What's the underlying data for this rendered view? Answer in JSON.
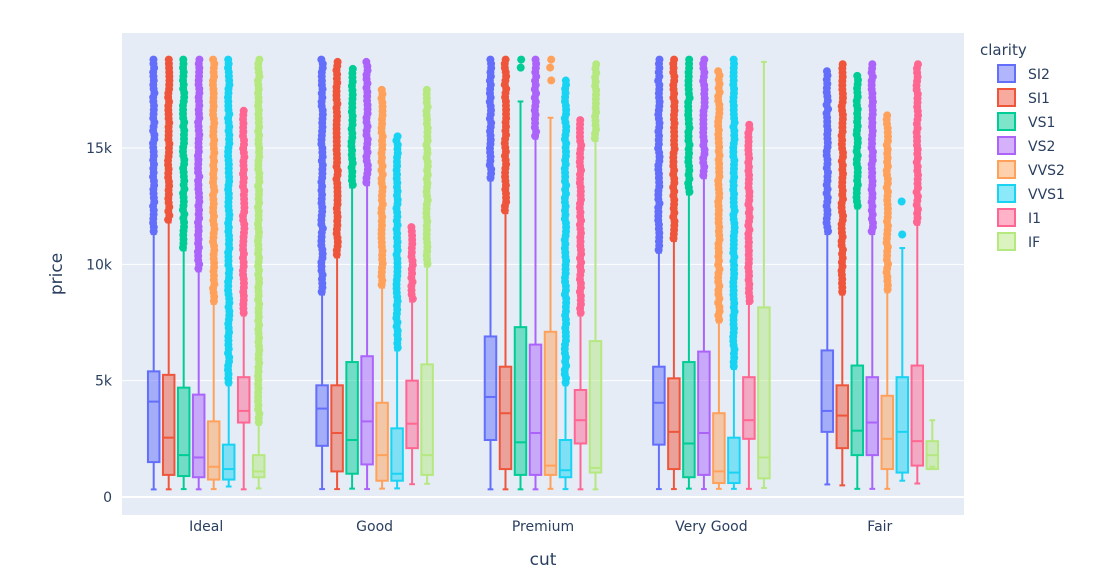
{
  "chart_data": {
    "type": "box",
    "title": "",
    "xlabel": "cut",
    "ylabel": "price",
    "ylim": [
      -600,
      19800
    ],
    "yticks": [
      0,
      5000,
      10000,
      15000
    ],
    "ytick_labels": [
      "0",
      "5k",
      "10k",
      "15k"
    ],
    "categories": [
      "Ideal",
      "Good",
      "Premium",
      "Very Good",
      "Fair"
    ],
    "legend": {
      "title": "clarity",
      "position": "right"
    },
    "series": [
      {
        "name": "SI2",
        "color": "#636efa",
        "stats": [
          [
            326,
            1500,
            4100,
            5400,
            11300,
            18800
          ],
          [
            340,
            2200,
            3800,
            4800,
            8700,
            18800
          ],
          [
            330,
            2450,
            4300,
            6900,
            13600,
            18800
          ],
          [
            340,
            2250,
            4050,
            5600,
            10500,
            18800
          ],
          [
            540,
            2800,
            3700,
            6300,
            11300,
            18300
          ]
        ]
      },
      {
        "name": "SI1",
        "color": "#ef553b",
        "stats": [
          [
            330,
            950,
            2550,
            5250,
            11800,
            18800
          ],
          [
            340,
            1100,
            2750,
            4800,
            10300,
            18700
          ],
          [
            330,
            1200,
            3600,
            5600,
            12200,
            18800
          ],
          [
            340,
            1200,
            2800,
            5100,
            11000,
            18800
          ],
          [
            500,
            2100,
            3500,
            4800,
            8700,
            18600
          ]
        ]
      },
      {
        "name": "VS1",
        "color": "#00cc96",
        "stats": [
          [
            340,
            900,
            1800,
            4700,
            10600,
            18800
          ],
          [
            360,
            1000,
            2450,
            5800,
            13300,
            18400
          ],
          [
            330,
            950,
            2350,
            7300,
            17000,
            18800
          ],
          [
            360,
            850,
            2300,
            5800,
            13000,
            18800
          ],
          [
            350,
            1800,
            2850,
            5650,
            12400,
            18100
          ]
        ]
      },
      {
        "name": "VS2",
        "color": "#ab63fa",
        "stats": [
          [
            330,
            850,
            1700,
            4400,
            9700,
            18800
          ],
          [
            340,
            1400,
            3250,
            6050,
            13400,
            18700
          ],
          [
            330,
            950,
            2750,
            6550,
            15400,
            18800
          ],
          [
            340,
            950,
            2750,
            6250,
            13700,
            18800
          ],
          [
            350,
            1800,
            3200,
            5150,
            11300,
            18600
          ]
        ]
      },
      {
        "name": "VVS2",
        "color": "#ffa15a",
        "stats": [
          [
            340,
            750,
            1300,
            3250,
            8300,
            18800
          ],
          [
            360,
            700,
            1800,
            4050,
            9000,
            17500
          ],
          [
            350,
            950,
            1350,
            7100,
            16300,
            18800
          ],
          [
            350,
            600,
            1100,
            3600,
            7500,
            18300
          ],
          [
            350,
            1200,
            2500,
            4350,
            8800,
            16400
          ]
        ]
      },
      {
        "name": "VVS1",
        "color": "#19d3f3",
        "stats": [
          [
            450,
            750,
            1200,
            2250,
            4800,
            18800
          ],
          [
            370,
            700,
            1000,
            2950,
            6300,
            15500
          ],
          [
            340,
            850,
            1150,
            2450,
            4800,
            17900
          ],
          [
            350,
            600,
            1050,
            2550,
            5500,
            18800
          ],
          [
            700,
            1050,
            2800,
            5150,
            10700,
            12700
          ]
        ]
      },
      {
        "name": "I1",
        "color": "#ff6692",
        "stats": [
          [
            330,
            3200,
            3700,
            5150,
            7800,
            16600
          ],
          [
            550,
            2100,
            3150,
            5000,
            8400,
            11600
          ],
          [
            330,
            2300,
            3300,
            4600,
            7800,
            16200
          ],
          [
            350,
            2500,
            3300,
            5150,
            8300,
            16000
          ],
          [
            580,
            1350,
            2400,
            5650,
            11700,
            18600
          ]
        ]
      },
      {
        "name": "IF",
        "color": "#b6e880",
        "stats": [
          [
            370,
            850,
            1100,
            1800,
            3100,
            18800
          ],
          [
            570,
            950,
            1800,
            5700,
            9900,
            17500
          ],
          [
            330,
            1050,
            1250,
            6700,
            15300,
            18600
          ],
          [
            390,
            800,
            1700,
            8150,
            18700,
            18700
          ],
          [
            1300,
            1200,
            1800,
            2400,
            3300,
            3300
          ]
        ]
      }
    ]
  }
}
